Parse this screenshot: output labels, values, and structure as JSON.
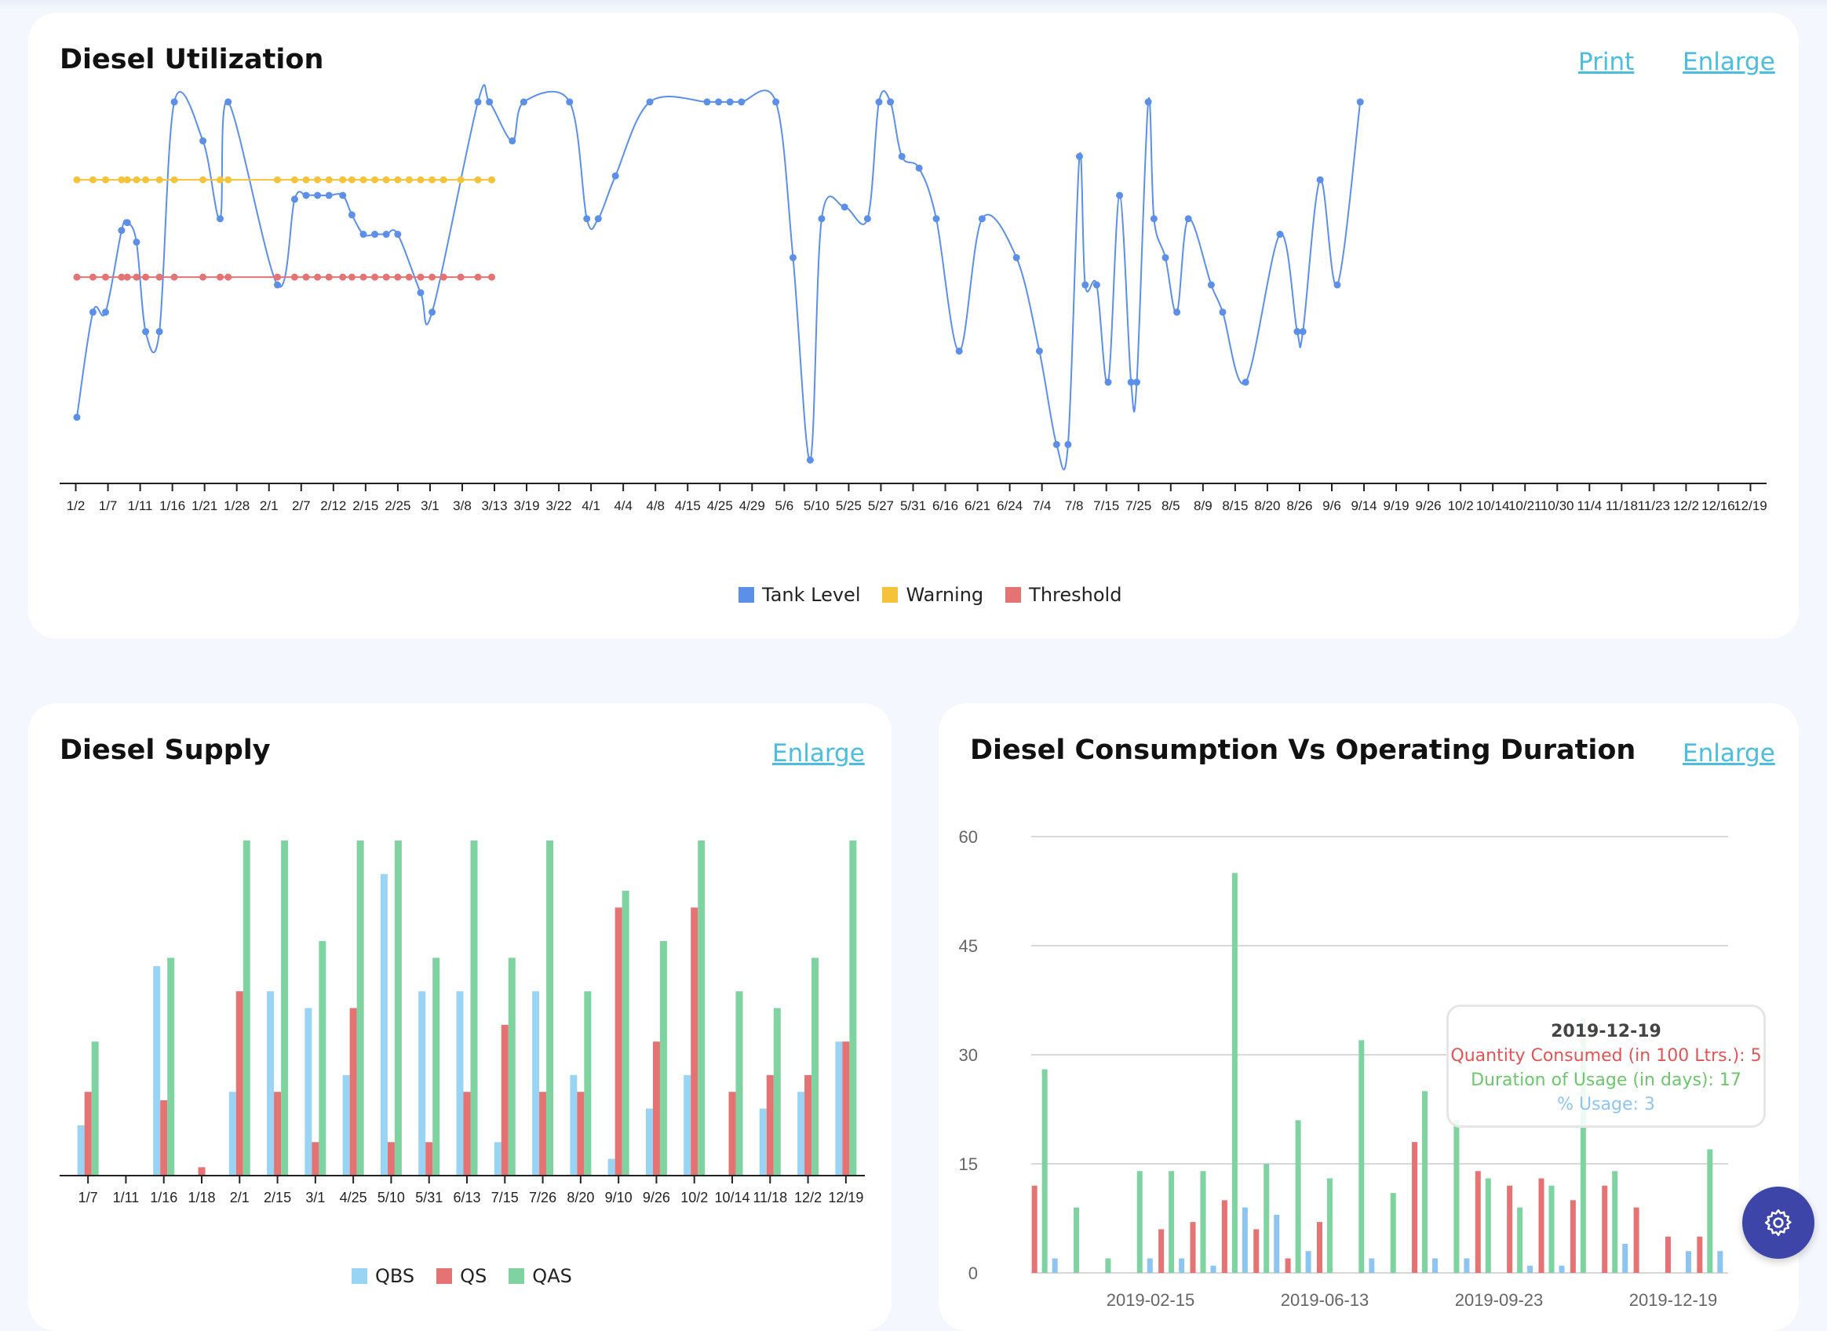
{
  "cards": {
    "utilization": {
      "title": "Diesel Utilization",
      "print_label": "Print",
      "enlarge_label": "Enlarge"
    },
    "supply": {
      "title": "Diesel Supply",
      "enlarge_label": "Enlarge"
    },
    "consumption": {
      "title": "Diesel Consumption Vs Operating Duration",
      "enlarge_label": "Enlarge"
    }
  },
  "colors": {
    "tank": "#5b8fe8",
    "warning": "#f4c33a",
    "threshold": "#e57373",
    "qbs": "#99d4f5",
    "qs": "#e57373",
    "qas": "#7ed3a0",
    "link": "#4bbde0",
    "fab": "#3d46a8"
  },
  "tooltip": {
    "date": "2019-12-19",
    "line1": "Quantity Consumed (in 100 Ltrs.): 5",
    "line2": "Duration of Usage (in days): 17",
    "line3": "% Usage: 3"
  },
  "fab_icon": "gear-icon",
  "chart_data": [
    {
      "type": "line",
      "title": "Diesel Utilization",
      "legend": [
        "Tank Level",
        "Warning",
        "Threshold"
      ],
      "legend_position": "bottom",
      "grid": false,
      "x_tick_labels": [
        "1/2",
        "1/7",
        "1/11",
        "1/16",
        "1/21",
        "1/28",
        "2/1",
        "2/7",
        "2/12",
        "2/15",
        "2/25",
        "3/1",
        "3/8",
        "3/13",
        "3/19",
        "3/22",
        "4/1",
        "4/4",
        "4/8",
        "4/15",
        "4/25",
        "4/29",
        "5/6",
        "5/10",
        "5/25",
        "5/27",
        "5/31",
        "6/16",
        "6/21",
        "6/24",
        "7/4",
        "7/8",
        "7/15",
        "7/25",
        "8/5",
        "8/9",
        "8/15",
        "8/20",
        "8/26",
        "9/6",
        "9/14",
        "9/19",
        "9/26",
        "10/2",
        "10/14",
        "10/21",
        "10/30",
        "11/4",
        "11/18",
        "11/23",
        "12/2",
        "12/16",
        "12/19"
      ],
      "ylim": [
        0,
        100
      ],
      "series": [
        {
          "name": "Tank Level",
          "values": [
            [
              0,
              17
            ],
            [
              0.014,
              44
            ],
            [
              0.025,
              44
            ],
            [
              0.039,
              65
            ],
            [
              0.044,
              67
            ],
            [
              0.052,
              62
            ],
            [
              0.06,
              39
            ],
            [
              0.072,
              39
            ],
            [
              0.085,
              98
            ],
            [
              0.11,
              88
            ],
            [
              0.125,
              68
            ],
            [
              0.132,
              98
            ],
            [
              0.175,
              51
            ],
            [
              0.19,
              73
            ],
            [
              0.2,
              74
            ],
            [
              0.21,
              74
            ],
            [
              0.22,
              74
            ],
            [
              0.232,
              74
            ],
            [
              0.24,
              69
            ],
            [
              0.25,
              64
            ],
            [
              0.26,
              64
            ],
            [
              0.27,
              64
            ],
            [
              0.28,
              64
            ],
            [
              0.3,
              49
            ],
            [
              0.31,
              44
            ],
            [
              0.35,
              98
            ],
            [
              0.36,
              98
            ],
            [
              0.38,
              88
            ],
            [
              0.39,
              98
            ],
            [
              0.43,
              98
            ],
            [
              0.445,
              68
            ],
            [
              0.455,
              68
            ],
            [
              0.47,
              79
            ],
            [
              0.5,
              98
            ],
            [
              0.55,
              98
            ],
            [
              0.56,
              98
            ],
            [
              0.57,
              98
            ],
            [
              0.58,
              98
            ],
            [
              0.61,
              98
            ],
            [
              0.625,
              58
            ],
            [
              0.64,
              6
            ],
            [
              0.65,
              68
            ],
            [
              0.67,
              71
            ],
            [
              0.69,
              68
            ],
            [
              0.7,
              98
            ],
            [
              0.71,
              98
            ],
            [
              0.72,
              84
            ],
            [
              0.735,
              81
            ],
            [
              0.75,
              68
            ],
            [
              0.77,
              34
            ],
            [
              0.79,
              68
            ],
            [
              0.82,
              58
            ],
            [
              0.84,
              34
            ],
            [
              0.855,
              10
            ],
            [
              0.865,
              10
            ],
            [
              0.875,
              84
            ],
            [
              0.88,
              51
            ],
            [
              0.89,
              51
            ],
            [
              0.9,
              26
            ],
            [
              0.91,
              74
            ],
            [
              0.92,
              26
            ],
            [
              0.925,
              26
            ],
            [
              0.935,
              98
            ],
            [
              0.94,
              68
            ],
            [
              0.95,
              58
            ],
            [
              0.96,
              44
            ],
            [
              0.97,
              68
            ],
            [
              0.99,
              51
            ],
            [
              1.0,
              44
            ],
            [
              1.02,
              26
            ],
            [
              1.05,
              64
            ],
            [
              1.065,
              39
            ],
            [
              1.07,
              39
            ],
            [
              1.085,
              78
            ],
            [
              1.1,
              51
            ],
            [
              1.12,
              98
            ]
          ]
        },
        {
          "name": "Warning",
          "value": 78
        },
        {
          "name": "Threshold",
          "value": 53
        }
      ]
    },
    {
      "type": "bar",
      "title": "Diesel Supply",
      "legend": [
        "QBS",
        "QS",
        "QAS"
      ],
      "legend_position": "bottom",
      "grid": false,
      "categories": [
        "1/7",
        "1/11",
        "1/16",
        "1/18",
        "2/1",
        "2/15",
        "3/1",
        "4/25",
        "5/10",
        "5/31",
        "6/13",
        "7/15",
        "7/26",
        "8/20",
        "9/10",
        "9/26",
        "10/2",
        "10/14",
        "11/18",
        "12/2",
        "12/19"
      ],
      "ylim": [
        0,
        40
      ],
      "series": [
        {
          "name": "QBS",
          "values": [
            6,
            0,
            25,
            0,
            10,
            22,
            20,
            12,
            36,
            22,
            22,
            4,
            22,
            12,
            2,
            8,
            12,
            0,
            8,
            10,
            16
          ]
        },
        {
          "name": "QS",
          "values": [
            10,
            0,
            9,
            1,
            22,
            10,
            4,
            20,
            4,
            4,
            10,
            18,
            10,
            10,
            32,
            16,
            32,
            10,
            12,
            12,
            16
          ]
        },
        {
          "name": "QAS",
          "values": [
            16,
            0,
            26,
            0,
            40,
            40,
            28,
            40,
            40,
            26,
            40,
            26,
            40,
            22,
            34,
            28,
            40,
            22,
            20,
            26,
            40
          ]
        }
      ]
    },
    {
      "type": "bar",
      "title": "Diesel Consumption Vs Operating Duration",
      "x_tick_labels": [
        "2019-02-15",
        "2019-06-13",
        "2019-09-23",
        "2019-12-19"
      ],
      "y_tick_labels": [
        "0",
        "15",
        "30",
        "45",
        "60"
      ],
      "ylim": [
        0,
        60
      ],
      "grid": true,
      "series": [
        {
          "name": "Quantity Consumed (in 100 Ltrs.)",
          "values": [
            12,
            0,
            0,
            0,
            6,
            7,
            10,
            6,
            2,
            7,
            0,
            0,
            18,
            0,
            14,
            12,
            13,
            10,
            12,
            9,
            5,
            5
          ]
        },
        {
          "name": "Duration of Usage (in days)",
          "values": [
            28,
            9,
            2,
            14,
            14,
            14,
            55,
            15,
            21,
            13,
            32,
            11,
            25,
            21,
            13,
            9,
            12,
            35,
            14,
            0,
            0,
            17
          ]
        },
        {
          "name": "% Usage",
          "values": [
            2,
            0,
            0,
            2,
            2,
            1,
            9,
            8,
            3,
            0,
            2,
            0,
            2,
            2,
            0,
            1,
            1,
            0,
            4,
            0,
            3,
            3
          ]
        }
      ]
    }
  ]
}
